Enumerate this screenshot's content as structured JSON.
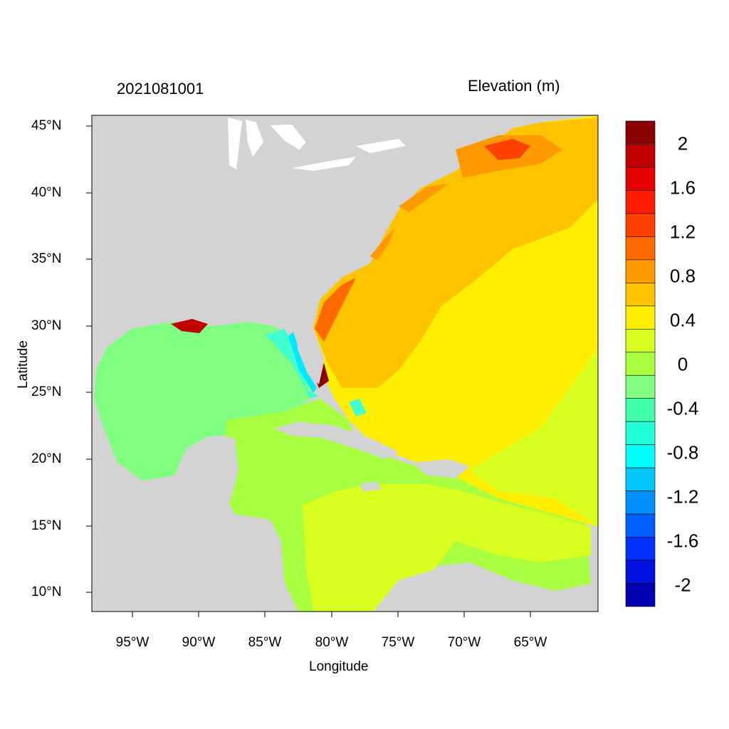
{
  "header": {
    "date_label": "2021081001",
    "variable_label": "Elevation (m)"
  },
  "axes": {
    "xlabel": "Longitude",
    "ylabel": "Latitude",
    "xticks": [
      "95°W",
      "90°W",
      "85°W",
      "80°W",
      "75°W",
      "70°W",
      "65°W"
    ],
    "yticks": [
      "45°N",
      "40°N",
      "35°N",
      "30°N",
      "25°N",
      "20°N",
      "15°N",
      "10°N"
    ],
    "lon_range": [
      -98,
      -60
    ],
    "lat_range": [
      8.5,
      46
    ]
  },
  "colorbar": {
    "labels": [
      "2",
      "1.6",
      "1.2",
      "0.8",
      "0.4",
      "0",
      "-0.4",
      "-0.8",
      "-1.2",
      "-1.6",
      "-2"
    ],
    "colors": [
      "#8b0000",
      "#c00000",
      "#e60000",
      "#ff1a00",
      "#ff4000",
      "#ff6a00",
      "#ff9900",
      "#ffc400",
      "#ffee00",
      "#d8ff20",
      "#a8ff40",
      "#80ff80",
      "#40ffa8",
      "#20ffd8",
      "#00ffff",
      "#00c8ff",
      "#0090ff",
      "#0060ff",
      "#0030ff",
      "#0010e0",
      "#0000b0"
    ]
  },
  "map": {
    "land_color": "#d3d3d3",
    "water_color": "#ffffff"
  }
}
